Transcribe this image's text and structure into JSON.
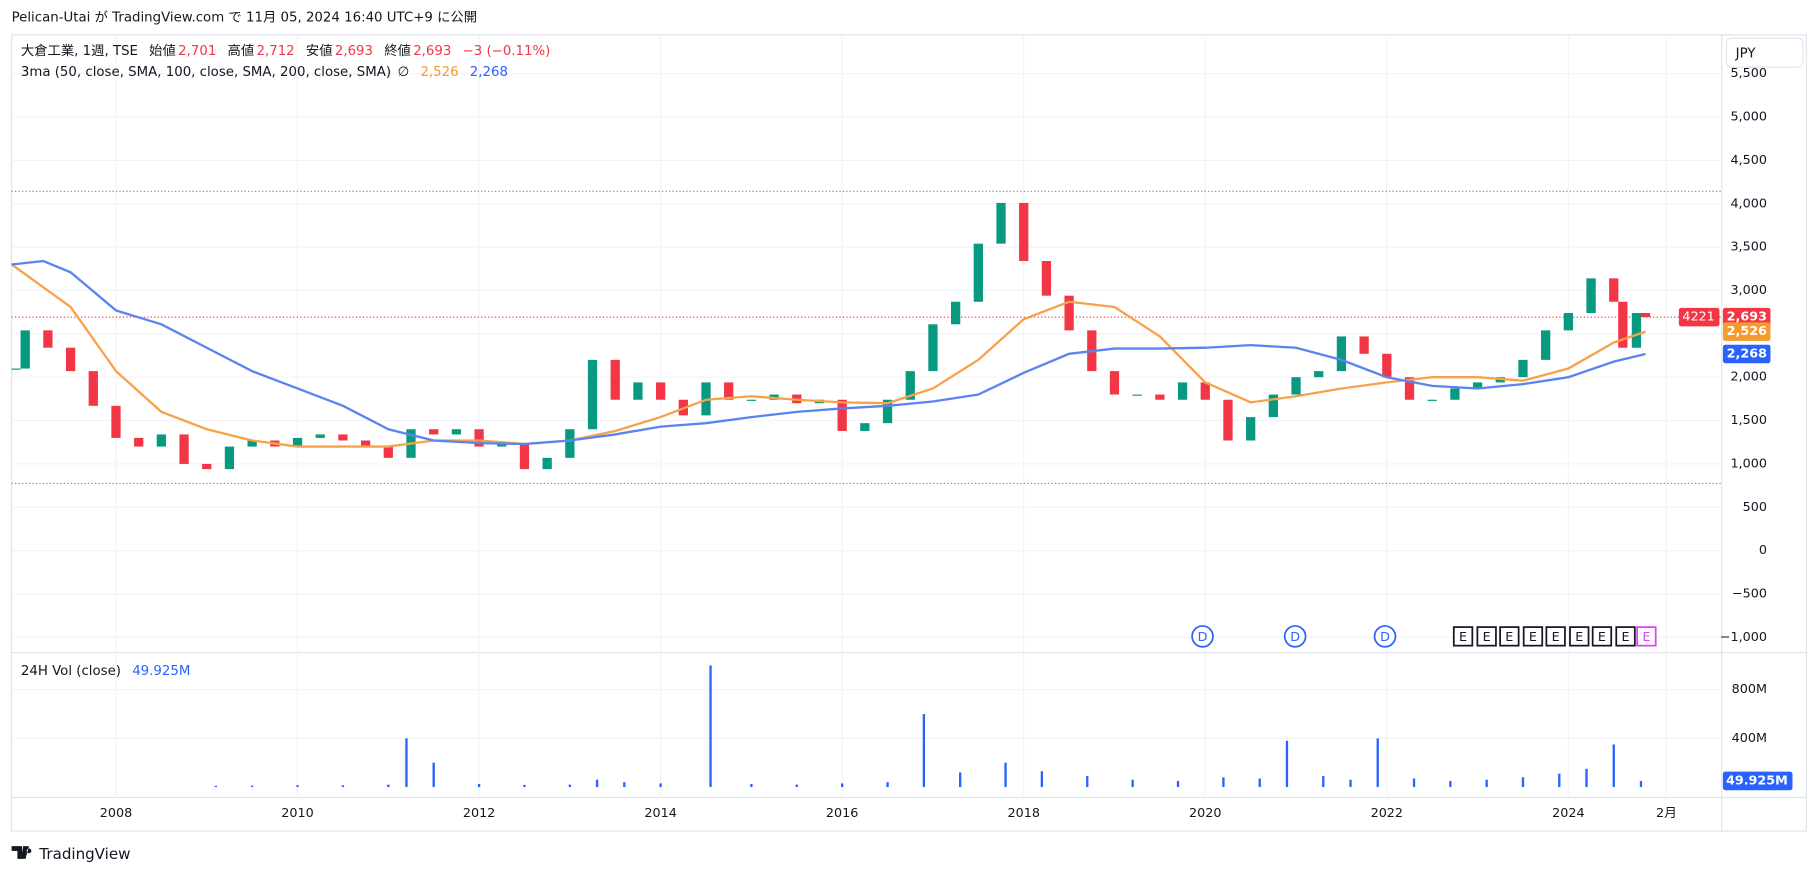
{
  "header": "Pelican-Utai が TradingView.com で 11月 05, 2024 16:40 UTC+9 に公開",
  "currency": "JPY",
  "logo": "TradingView",
  "chart_data": [
    {
      "type": "candlestick",
      "legend": {
        "symbol": "大倉工業, 1週, TSE",
        "fields": [
          {
            "name": "始値",
            "label": "2,701"
          },
          {
            "name": "高値",
            "label": "2,712"
          },
          {
            "name": "安値",
            "label": "2,693"
          },
          {
            "name": "終値",
            "label": "2,693"
          }
        ],
        "change": "−3 (−0.11%)"
      },
      "indicator": {
        "name": "3ma (50, close, SMA, 100, close, SMA, 200, close, SMA)",
        "symbol": "∅"
      },
      "xlim": [
        2006.85,
        2025.69
      ],
      "xticks": [
        2008,
        2010,
        2012,
        2014,
        2016,
        2018,
        2020,
        2022,
        2024,
        {
          "value": 2025.08,
          "label": "2月"
        }
      ],
      "ylim": [
        -1176,
        5949
      ],
      "yticks": [
        {
          "value": -1000,
          "label": "−1,000"
        },
        {
          "value": -500,
          "label": "−500"
        },
        0,
        500,
        {
          "value": 1000,
          "label": "1,000"
        },
        {
          "value": 1500,
          "label": "1,500"
        },
        {
          "value": 2000,
          "label": "2,000"
        },
        {
          "value": 2500,
          "label": "2,500"
        },
        {
          "value": 3000,
          "label": "3,000"
        },
        {
          "value": 3500,
          "label": "3,500"
        },
        {
          "value": 4000,
          "label": "4,000"
        },
        {
          "value": 4500,
          "label": "4,500"
        },
        {
          "value": 5000,
          "label": "5,000"
        },
        {
          "value": 5500,
          "label": "5,500"
        }
      ],
      "grid": true,
      "levels": [
        4144,
        775
      ],
      "last": {
        "value": 2693,
        "label": "2,693",
        "countdown": "4221",
        "color": "#f23645"
      },
      "series": [
        {
          "up_color": "#089981",
          "down_color": "#f23645",
          "x": [
            2006.9,
            2007.0,
            2007.25,
            2007.5,
            2007.75,
            2008.0,
            2008.25,
            2008.5,
            2008.75,
            2009.0,
            2009.25,
            2009.5,
            2009.75,
            2010.0,
            2010.25,
            2010.5,
            2010.75,
            2011.0,
            2011.25,
            2011.5,
            2011.75,
            2012.0,
            2012.25,
            2012.5,
            2012.75,
            2013.0,
            2013.25,
            2013.5,
            2013.75,
            2014.0,
            2014.25,
            2014.5,
            2014.75,
            2015.0,
            2015.25,
            2015.5,
            2015.75,
            2016.0,
            2016.25,
            2016.5,
            2016.75,
            2017.0,
            2017.25,
            2017.5,
            2017.75,
            2018.0,
            2018.25,
            2018.5,
            2018.75,
            2019.0,
            2019.25,
            2019.5,
            2019.75,
            2020.0,
            2020.25,
            2020.5,
            2020.75,
            2021.0,
            2021.25,
            2021.5,
            2021.75,
            2022.0,
            2022.25,
            2022.5,
            2022.75,
            2023.0,
            2023.25,
            2023.5,
            2023.75,
            2024.0,
            2024.25,
            2024.5,
            2024.6,
            2024.75,
            2024.85
          ],
          "values": [
            2100,
            2540,
            2340,
            2070,
            1670,
            1300,
            1200,
            1340,
            1000,
            940,
            1200,
            1270,
            1200,
            1300,
            1340,
            1270,
            1200,
            1070,
            1400,
            1340,
            1400,
            1200,
            1240,
            940,
            1070,
            1400,
            2200,
            1740,
            1940,
            1740,
            1560,
            1940,
            1740,
            1740,
            1800,
            1700,
            1740,
            1380,
            1470,
            1740,
            2070,
            2610,
            2870,
            3540,
            4010,
            3340,
            2940,
            2540,
            2070,
            1800,
            1800,
            1740,
            1940,
            1740,
            1270,
            1540,
            1800,
            2000,
            2070,
            2470,
            2270,
            2000,
            1740,
            1740,
            1870,
            1940,
            2000,
            2200,
            2540,
            2740,
            3140,
            2870,
            2340,
            2740,
            2693
          ]
        },
        {
          "color": "#f7a24a",
          "badge_color": "#f59a2c",
          "last": {
            "value": 2526,
            "label": "2,526"
          },
          "x": [
            2006.85,
            2007.5,
            2008.0,
            2008.5,
            2009.0,
            2009.5,
            2010.0,
            2010.5,
            2011.0,
            2011.5,
            2012.0,
            2012.5,
            2013.0,
            2013.5,
            2014.0,
            2014.5,
            2015.0,
            2015.5,
            2016.0,
            2016.5,
            2017.0,
            2017.5,
            2018.0,
            2018.5,
            2019.0,
            2019.5,
            2020.0,
            2020.5,
            2021.0,
            2021.5,
            2022.0,
            2022.5,
            2023.0,
            2023.5,
            2024.0,
            2024.5,
            2024.85
          ],
          "values": [
            3300,
            2810,
            2070,
            1600,
            1400,
            1270,
            1200,
            1200,
            1200,
            1270,
            1270,
            1230,
            1270,
            1380,
            1540,
            1740,
            1780,
            1740,
            1710,
            1700,
            1870,
            2200,
            2670,
            2870,
            2810,
            2470,
            1940,
            1710,
            1780,
            1870,
            1940,
            2000,
            2000,
            1960,
            2100,
            2400,
            2526
          ]
        },
        {
          "color": "#5b84ee",
          "badge_color": "#2962ff",
          "last": {
            "value": 2268,
            "label": "2,268"
          },
          "x": [
            2006.85,
            2007.2,
            2007.5,
            2008.0,
            2008.5,
            2009.0,
            2009.5,
            2010.0,
            2010.5,
            2011.0,
            2011.5,
            2012.0,
            2012.5,
            2013.0,
            2013.5,
            2014.0,
            2014.5,
            2015.0,
            2015.5,
            2016.0,
            2016.5,
            2017.0,
            2017.5,
            2018.0,
            2018.5,
            2019.0,
            2019.5,
            2020.0,
            2020.5,
            2021.0,
            2021.5,
            2022.0,
            2022.5,
            2023.0,
            2023.5,
            2024.0,
            2024.5,
            2024.85
          ],
          "values": [
            3300,
            3340,
            3210,
            2770,
            2610,
            2340,
            2070,
            1870,
            1670,
            1400,
            1270,
            1240,
            1230,
            1270,
            1340,
            1430,
            1470,
            1540,
            1600,
            1640,
            1670,
            1720,
            1800,
            2050,
            2270,
            2330,
            2330,
            2340,
            2370,
            2340,
            2200,
            2000,
            1900,
            1870,
            1920,
            2000,
            2180,
            2268
          ]
        }
      ],
      "events": {
        "dividends": {
          "label": "D",
          "x": [
            2019.97,
            2020.99,
            2021.98
          ]
        },
        "earnings": {
          "label": "E",
          "x": [
            2022.84,
            2023.1,
            2023.35,
            2023.61,
            2023.86,
            2024.12,
            2024.37,
            2024.63,
            2024.86
          ]
        }
      }
    },
    {
      "type": "bar",
      "title": "24H Vol (close)",
      "color": "#2962ff",
      "ylim": [
        -86000000,
        1105000000
      ],
      "yticks": [
        {
          "value": 400000000,
          "label": "400M"
        },
        {
          "value": 800000000,
          "label": "800M"
        }
      ],
      "last": {
        "value": 49925000,
        "label": "49.925M"
      },
      "x": [
        2009.1,
        2009.5,
        2010.0,
        2010.5,
        2011.0,
        2011.2,
        2011.5,
        2012.0,
        2012.5,
        2013.0,
        2013.3,
        2013.6,
        2014.0,
        2014.55,
        2015.0,
        2015.5,
        2016.0,
        2016.5,
        2016.9,
        2017.3,
        2017.8,
        2018.2,
        2018.7,
        2019.2,
        2019.7,
        2020.2,
        2020.6,
        2020.9,
        2021.3,
        2021.6,
        2021.9,
        2022.3,
        2022.7,
        2023.1,
        2023.5,
        2023.9,
        2024.2,
        2024.5,
        2024.8
      ],
      "values": [
        10000000,
        12000000,
        15000000,
        14000000,
        20000000,
        400000000,
        200000000,
        25000000,
        18000000,
        20000000,
        60000000,
        40000000,
        30000000,
        1000000000,
        25000000,
        20000000,
        30000000,
        40000000,
        600000000,
        120000000,
        200000000,
        130000000,
        90000000,
        60000000,
        50000000,
        80000000,
        70000000,
        380000000,
        90000000,
        60000000,
        400000000,
        70000000,
        50000000,
        60000000,
        80000000,
        110000000,
        150000000,
        350000000,
        49925000
      ]
    }
  ]
}
